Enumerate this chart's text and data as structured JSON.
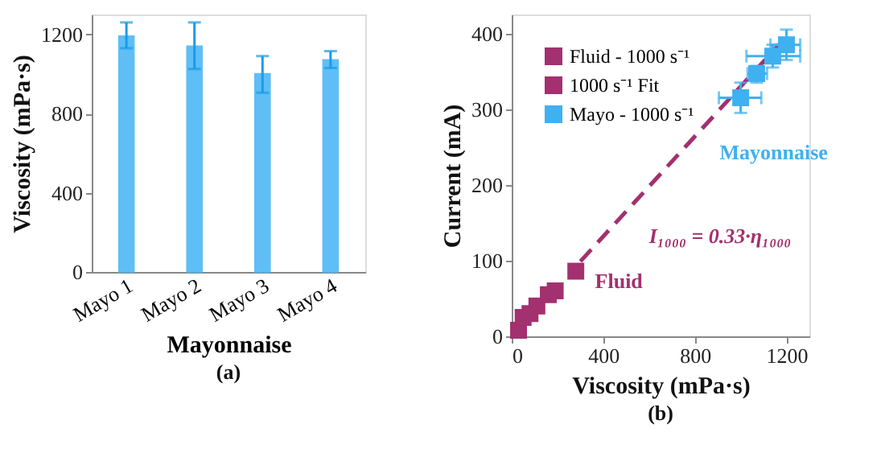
{
  "chart_data": [
    {
      "type": "bar",
      "title": "(a)",
      "xlabel": "Mayonnaise",
      "ylabel": "Viscosity (mPa·s)",
      "categories": [
        "Mayo 1",
        "Mayo 2",
        "Mayo 3",
        "Mayo 4"
      ],
      "series": [
        {
          "color": "#4db8f5",
          "values": [
            1190,
            1140,
            1000,
            1070
          ],
          "errors": [
            [
              1130,
              1260
            ],
            [
              1025,
              1260
            ],
            [
              905,
              1090
            ],
            [
              1030,
              1115
            ]
          ]
        }
      ],
      "ylim": [
        0,
        1300
      ],
      "yticks": [
        0,
        400,
        800,
        1200
      ]
    },
    {
      "type": "scatter",
      "title": "(b)",
      "xlabel": "Viscosity (mPa·s)",
      "ylabel": "Current (mA)",
      "series": [
        {
          "name": "Fluid - 1000 s⁻¹",
          "color": "#a3306f",
          "marker": "square",
          "x": [
            30,
            50,
            80,
            110,
            160,
            190,
            280
          ],
          "values": [
            8,
            25,
            30,
            40,
            55,
            60,
            86
          ]
        },
        {
          "name": "1000 s⁻¹ Fit",
          "type": "line",
          "line_style": "dashed",
          "marker": "none",
          "color": "#a3306f",
          "x": [
            300,
            1170
          ],
          "values": [
            99,
            386
          ]
        },
        {
          "name": "Mayo - 1000 s⁻¹",
          "color": "#3fb0f0",
          "marker": "square",
          "x": [
            1000,
            1070,
            1140,
            1200
          ],
          "values": [
            315,
            347,
            370,
            385
          ],
          "errors": [
            [
              295,
              335
            ],
            [
              335,
              357
            ],
            [
              355,
              385
            ],
            [
              365,
              405
            ]
          ],
          "xerrors": [
            [
              905,
              1090
            ],
            [
              1030,
              1115
            ],
            [
              1025,
              1260
            ],
            [
              1130,
              1260
            ]
          ]
        }
      ],
      "annotations": [
        "Fluid",
        "Mayonnaise",
        "I₁₀₀₀ = 0.33·η₁₀₀₀"
      ],
      "xlim": [
        0,
        1300
      ],
      "xticks": [
        0,
        400,
        800,
        1200
      ],
      "ylim": [
        0,
        425
      ],
      "yticks": [
        0,
        100,
        200,
        300,
        400
      ],
      "legend": "top left"
    }
  ]
}
